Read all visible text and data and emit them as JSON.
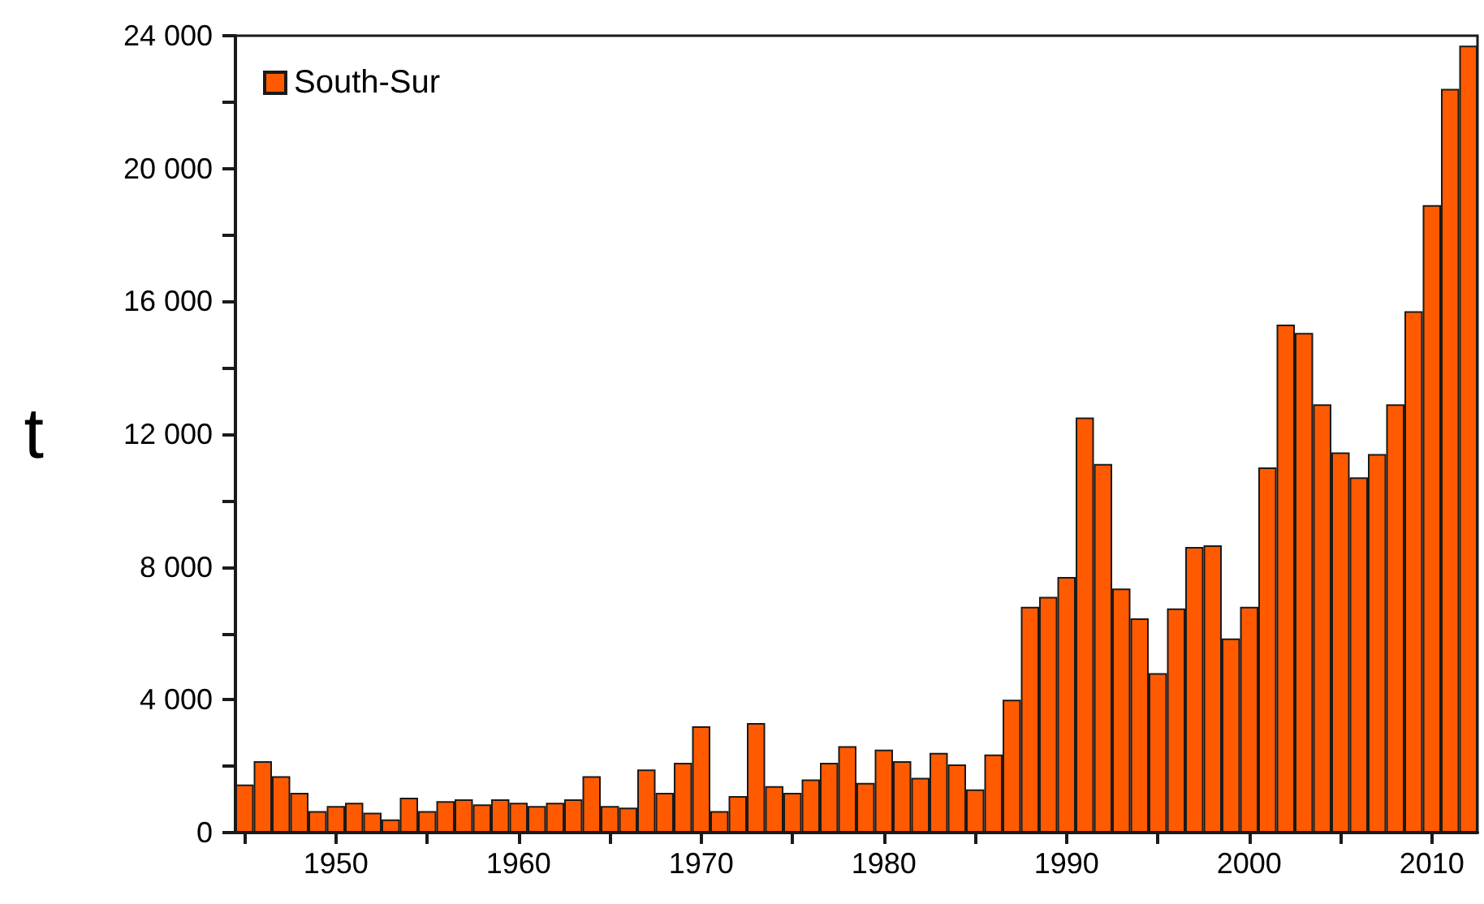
{
  "chart_data": {
    "type": "bar",
    "ylabel": "t",
    "x": [
      1945,
      1946,
      1947,
      1948,
      1949,
      1950,
      1951,
      1952,
      1953,
      1954,
      1955,
      1956,
      1957,
      1958,
      1959,
      1960,
      1961,
      1962,
      1963,
      1964,
      1965,
      1966,
      1967,
      1968,
      1969,
      1970,
      1971,
      1972,
      1973,
      1974,
      1975,
      1976,
      1977,
      1978,
      1979,
      1980,
      1981,
      1982,
      1983,
      1984,
      1985,
      1986,
      1987,
      1988,
      1989,
      1990,
      1991,
      1992,
      1993,
      1994,
      1995,
      1996,
      1997,
      1998,
      1999,
      2000,
      2001,
      2002,
      2003,
      2004,
      2005,
      2006,
      2007,
      2008,
      2009,
      2010,
      2011,
      2012
    ],
    "series": [
      {
        "name": "South-Sur",
        "color": "#ff5a00",
        "values": [
          1450,
          2150,
          1700,
          1200,
          650,
          800,
          900,
          600,
          400,
          1050,
          650,
          950,
          1000,
          850,
          1000,
          900,
          800,
          900,
          1000,
          1700,
          800,
          750,
          1900,
          1200,
          2100,
          3200,
          650,
          1100,
          3300,
          1400,
          1200,
          1600,
          2100,
          2600,
          1500,
          2500,
          2150,
          1650,
          2400,
          2050,
          1300,
          2350,
          4000,
          6800,
          7100,
          7700,
          12500,
          11100,
          7350,
          6450,
          4800,
          6750,
          8600,
          8650,
          5850,
          6800,
          11000,
          15300,
          15050,
          12900,
          11450,
          10700,
          11400,
          12900,
          15700,
          18900,
          22400,
          23700
        ]
      }
    ],
    "xlim": [
      1944.5,
      2012.5
    ],
    "xticks": [
      {
        "value": 1945,
        "label": null
      },
      1950,
      {
        "value": 1955,
        "label": null
      },
      1960,
      {
        "value": 1965,
        "label": null
      },
      1970,
      {
        "value": 1975,
        "label": null
      },
      1980,
      {
        "value": 1985,
        "label": null
      },
      1990,
      {
        "value": 1995,
        "label": null
      },
      2000,
      {
        "value": 2005,
        "label": null
      },
      2010
    ],
    "ylim": [
      0,
      24000
    ],
    "yticks": [
      {
        "value": 0,
        "label": "0"
      },
      {
        "value": 2000,
        "label": null
      },
      {
        "value": 4000,
        "label": "4 000"
      },
      {
        "value": 6000,
        "label": null
      },
      {
        "value": 8000,
        "label": "8 000"
      },
      {
        "value": 10000,
        "label": null
      },
      {
        "value": 12000,
        "label": "12 000"
      },
      {
        "value": 14000,
        "label": null
      },
      {
        "value": 16000,
        "label": "16 000"
      },
      {
        "value": 18000,
        "label": null
      },
      {
        "value": 20000,
        "label": "20 000"
      },
      {
        "value": 22000,
        "label": null
      },
      {
        "value": 24000,
        "label": "24 000"
      }
    ],
    "legend": "top left",
    "grid": false
  }
}
